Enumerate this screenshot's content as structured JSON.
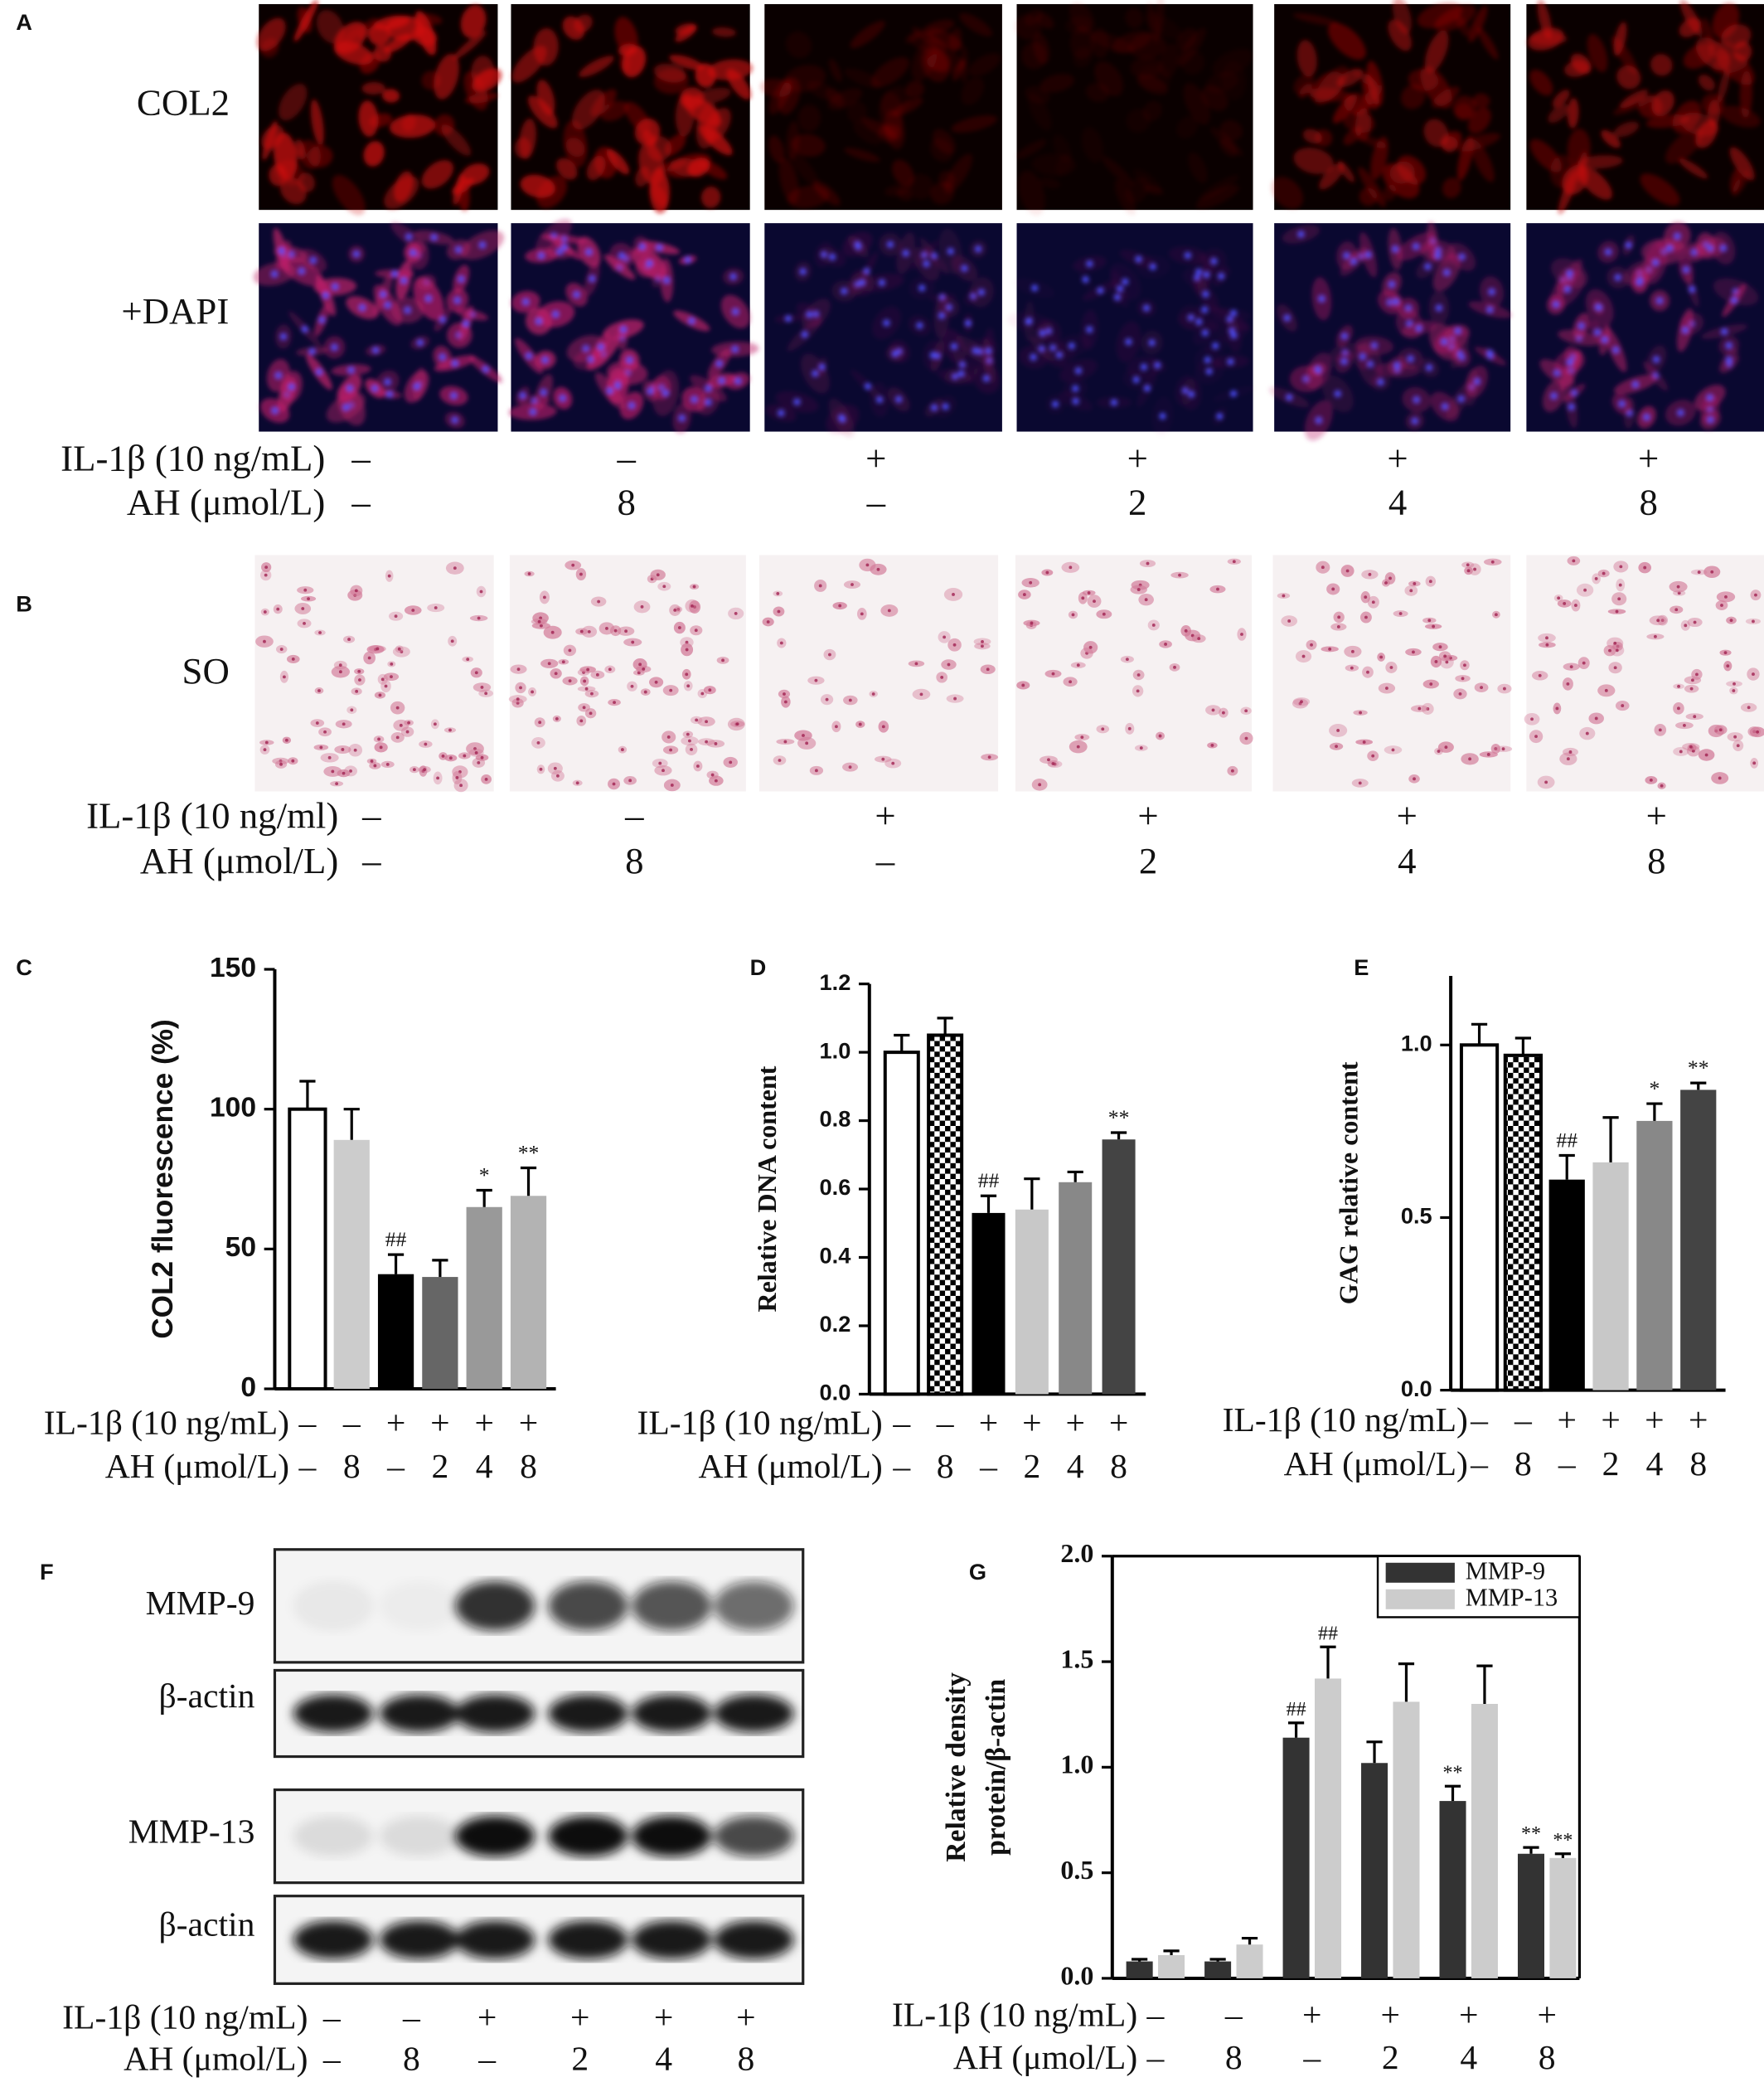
{
  "figure": {
    "panel_a": {
      "letter": "A",
      "row_labels": [
        "COL2",
        "+DAPI"
      ],
      "conditions": [
        {
          "label": "IL-1β (10 ng/mL)",
          "values": [
            "–",
            "–",
            "+",
            "+",
            "+",
            "+"
          ]
        },
        {
          "label": "AH (μmol/L)",
          "values": [
            "–",
            "8",
            "–",
            "2",
            "4",
            "8"
          ]
        }
      ]
    },
    "panel_b": {
      "letter": "B",
      "row_labels": [
        "SO"
      ],
      "conditions": [
        {
          "label": "IL-1β (10 ng/ml)",
          "values": [
            "–",
            "–",
            "+",
            "+",
            "+",
            "+"
          ]
        },
        {
          "label": "AH (μmol/L)",
          "values": [
            "–",
            "8",
            "–",
            "2",
            "4",
            "8"
          ]
        }
      ]
    },
    "panel_f": {
      "letter": "F",
      "row_labels": [
        "MMP-9",
        "β-actin",
        "MMP-13",
        "β-actin"
      ],
      "conditions": [
        {
          "label": "IL-1β (10 ng/mL)",
          "values": [
            "–",
            "–",
            "+",
            "+",
            "+",
            "+"
          ]
        },
        {
          "label": "AH (μmol/L)",
          "values": [
            "–",
            "8",
            "–",
            "2",
            "4",
            "8"
          ]
        }
      ]
    }
  },
  "chart_data": [
    {
      "type": "bar",
      "panel": "C",
      "y_label": "COL2 fluorescence (%)",
      "values": [
        100,
        89,
        41,
        40,
        65,
        69
      ],
      "errors": [
        10,
        11,
        7,
        6,
        6,
        10
      ],
      "colors": [
        "#ffffff",
        "#cccccc",
        "#000000",
        "#666666",
        "#999999",
        "#b3b3b3"
      ],
      "annotations": [
        null,
        null,
        "##",
        null,
        "*",
        "**"
      ],
      "ylim": [
        0,
        150
      ],
      "yticks": [
        0,
        50,
        100,
        150
      ],
      "conditions": [
        {
          "label": "IL-1β (10 ng/mL)",
          "values": [
            "–",
            "–",
            "+",
            "+",
            "+",
            "+"
          ]
        },
        {
          "label": "AH (μmol/L)",
          "values": [
            "–",
            "8",
            "–",
            "2",
            "4",
            "8"
          ]
        }
      ]
    },
    {
      "type": "bar",
      "panel": "D",
      "y_label": "Relative DNA content",
      "values": [
        1.0,
        1.05,
        0.53,
        0.54,
        0.62,
        0.745
      ],
      "errors": [
        0.05,
        0.05,
        0.05,
        0.09,
        0.03,
        0.02
      ],
      "colors": [
        "#ffffff",
        "#ffffff",
        "#000000",
        "#c8c8c8",
        "#888888",
        "#444444"
      ],
      "bar_patterns": [
        null,
        "checkerboard",
        null,
        null,
        null,
        null
      ],
      "annotations": [
        null,
        null,
        "##",
        null,
        null,
        "**"
      ],
      "ylim": [
        0,
        1.2
      ],
      "yticks": [
        {
          "value": 0,
          "label": "0.0"
        },
        0.2,
        0.4,
        0.6,
        0.8,
        {
          "value": 1,
          "label": "1.0"
        },
        1.2
      ],
      "conditions": [
        {
          "label": "IL-1β (10 ng/mL)",
          "values": [
            "–",
            "–",
            "+",
            "+",
            "+",
            "+"
          ]
        },
        {
          "label": "AH (μmol/L)",
          "values": [
            "–",
            "8",
            "–",
            "2",
            "4",
            "8"
          ]
        }
      ]
    },
    {
      "type": "bar",
      "panel": "E",
      "y_label": "GAG relative content",
      "values": [
        1.0,
        0.97,
        0.61,
        0.66,
        0.78,
        0.87
      ],
      "errors": [
        0.06,
        0.05,
        0.07,
        0.13,
        0.05,
        0.02
      ],
      "colors": [
        "#ffffff",
        "#ffffff",
        "#000000",
        "#c8c8c8",
        "#888888",
        "#444444"
      ],
      "bar_patterns": [
        null,
        "checkerboard",
        null,
        null,
        null,
        null
      ],
      "annotations": [
        null,
        null,
        "##",
        null,
        "*",
        "**"
      ],
      "ylim": [
        0,
        1.2
      ],
      "yticks": [
        {
          "value": 0,
          "label": "0.0"
        },
        0.5,
        {
          "value": 1,
          "label": "1.0"
        }
      ],
      "conditions": [
        {
          "label": "IL-1β (10 ng/mL)",
          "values": [
            "–",
            "–",
            "+",
            "+",
            "+",
            "+"
          ]
        },
        {
          "label": "AH (μmol/L)",
          "values": [
            "–",
            "8",
            "–",
            "2",
            "4",
            "8"
          ]
        }
      ]
    },
    {
      "type": "grouped_bar",
      "panel": "G",
      "y_label": [
        "Relative density",
        "protein/β-actin"
      ],
      "legend": "upper right",
      "series": [
        {
          "name": "MMP-9",
          "color": "#333333",
          "values": [
            0.08,
            0.08,
            1.14,
            1.02,
            0.84,
            0.59
          ],
          "errors": [
            0.01,
            0.01,
            0.07,
            0.1,
            0.07,
            0.03
          ],
          "annotations": [
            null,
            null,
            "##",
            null,
            "**",
            "**"
          ]
        },
        {
          "name": "MMP-13",
          "color": "#cccccc",
          "values": [
            0.11,
            0.16,
            1.42,
            1.31,
            1.3,
            0.57
          ],
          "errors": [
            0.02,
            0.03,
            0.15,
            0.18,
            0.18,
            0.02
          ],
          "annotations": [
            null,
            null,
            "##",
            null,
            null,
            "**"
          ]
        }
      ],
      "ylim": [
        0,
        2
      ],
      "yticks": [
        {
          "value": 0,
          "label": "0.0"
        },
        0.5,
        {
          "value": 1,
          "label": "1.0"
        },
        1.5,
        {
          "value": 2,
          "label": "2.0"
        }
      ],
      "conditions": [
        {
          "label": "IL-1β (10 ng/mL)",
          "values": [
            "–",
            "–",
            "+",
            "+",
            "+",
            "+"
          ]
        },
        {
          "label": "AH (μmol/L)",
          "values": [
            "–",
            "8",
            "–",
            "2",
            "4",
            "8"
          ]
        }
      ]
    }
  ]
}
